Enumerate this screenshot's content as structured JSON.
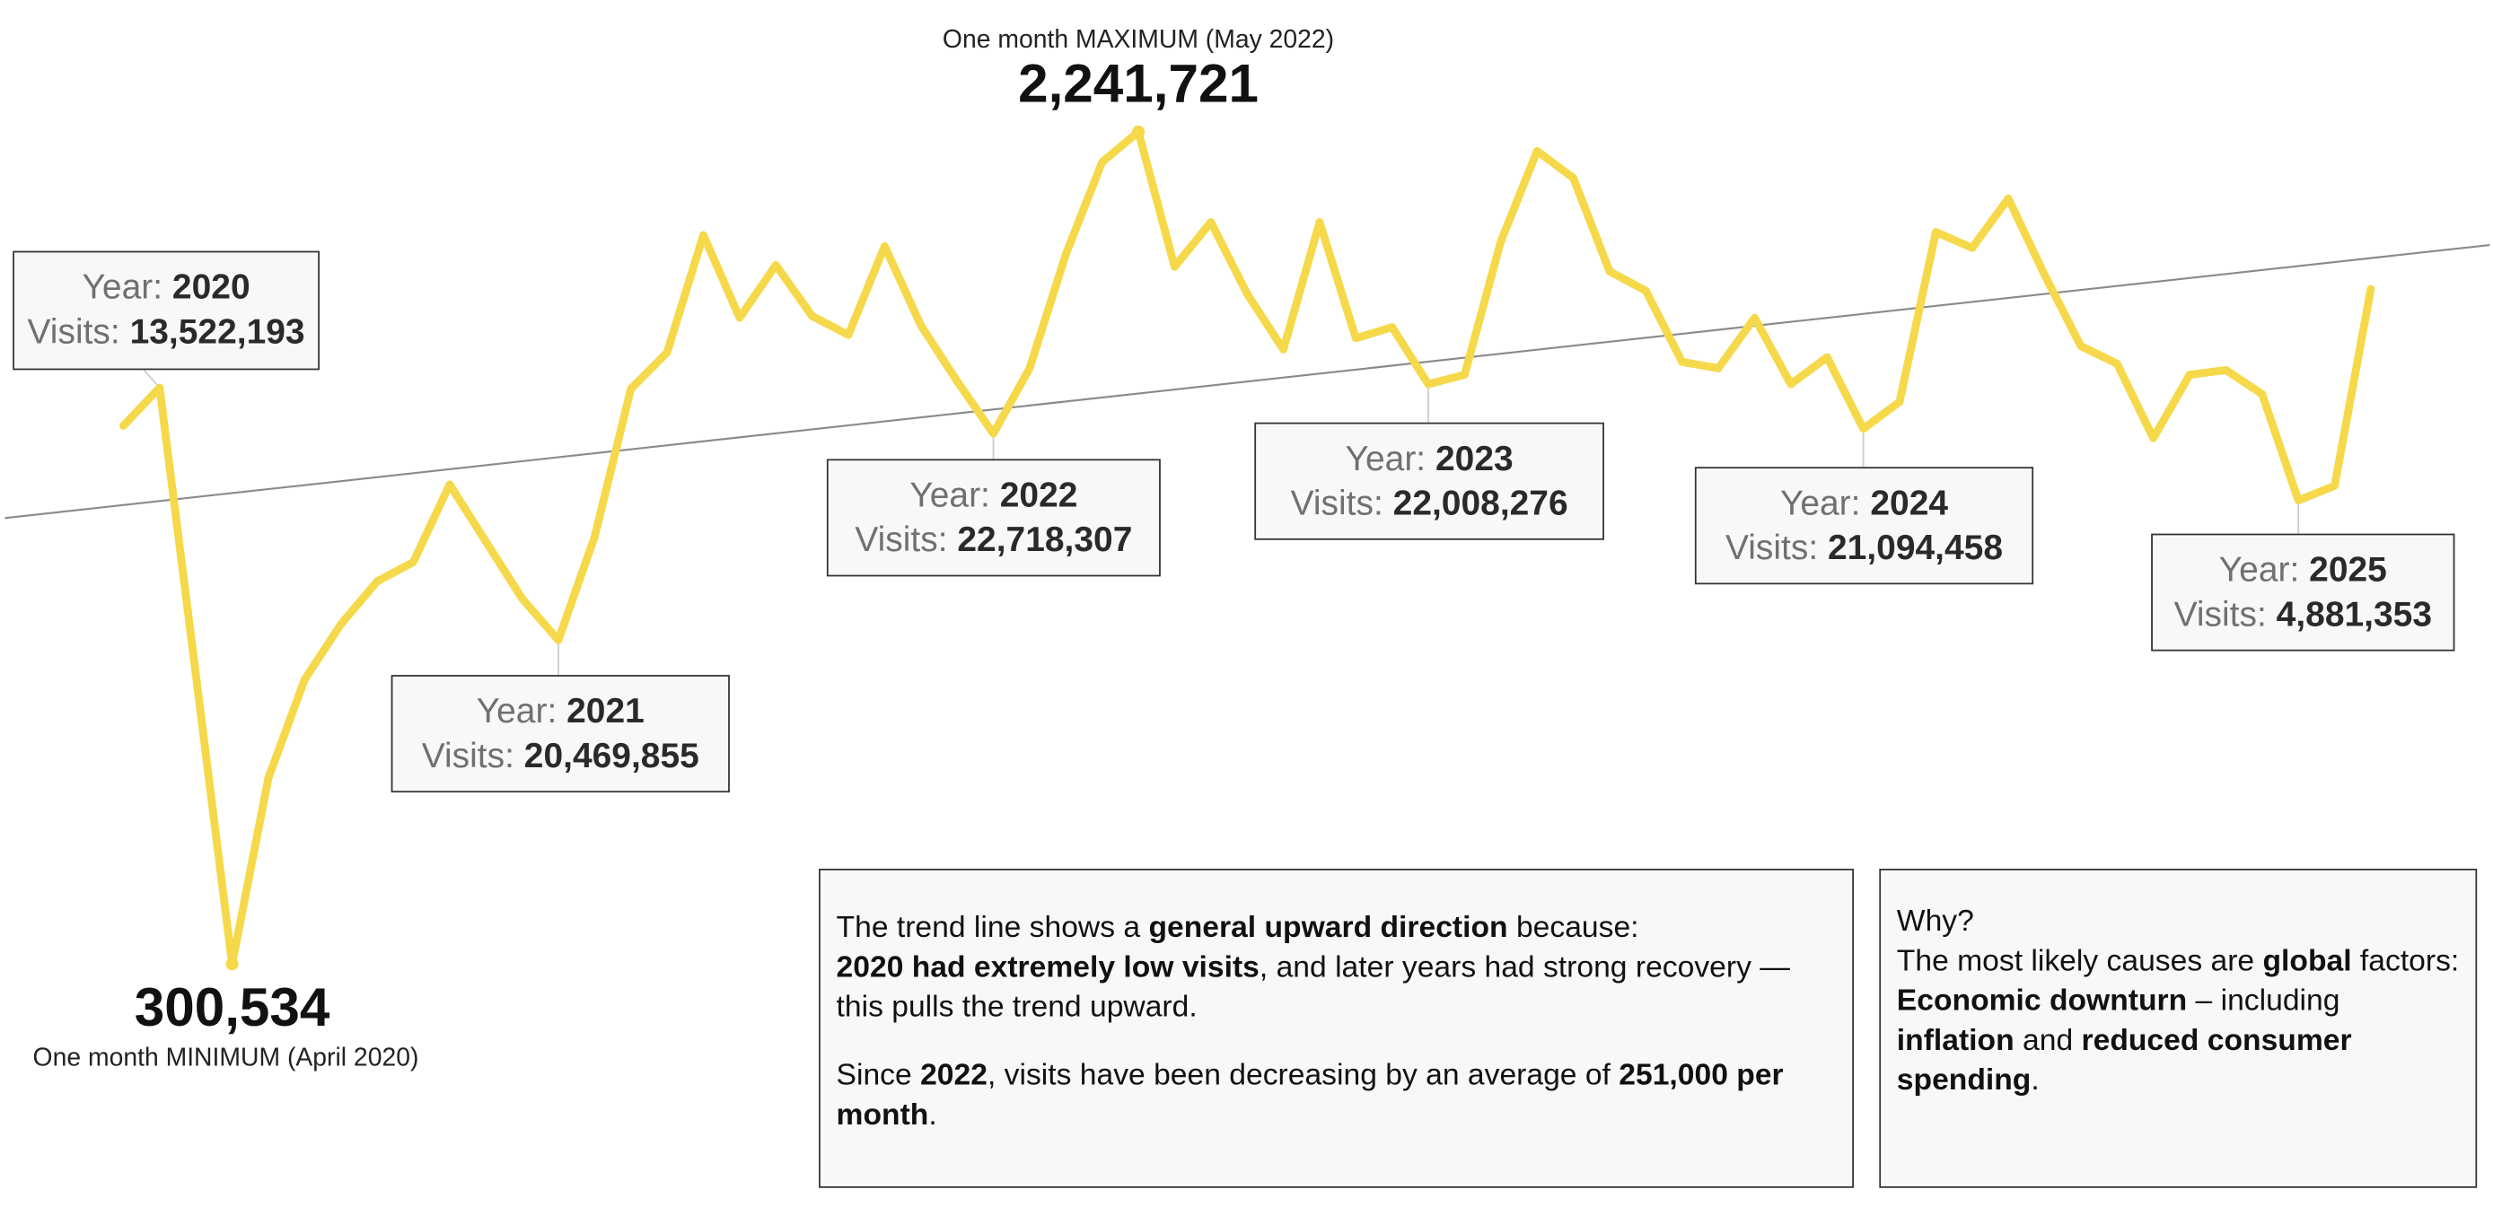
{
  "chart_data": {
    "type": "line",
    "color": "#f5d94a",
    "trendline": true,
    "trend_color": "#8a8a8a",
    "values": [
      1556000,
      1645000,
      975000,
      300534,
      734000,
      964000,
      1093000,
      1193000,
      1238000,
      1419000,
      1286000,
      1153000,
      1056000,
      1297000,
      1642000,
      1727000,
      2001000,
      1808000,
      1931000,
      1812000,
      1768000,
      1975000,
      1790000,
      1660000,
      1538000,
      1690000,
      1956000,
      2171000,
      2241721,
      1927000,
      2031000,
      1864000,
      1734000,
      2031000,
      1760000,
      1786000,
      1653000,
      1675000,
      1986000,
      2197000,
      2134000,
      1916000,
      1871000,
      1705000,
      1690000,
      1808000,
      1653000,
      1716000,
      1549000,
      1612000,
      2008000,
      1971000,
      2086000,
      1908000,
      1742000,
      1701000,
      1527000,
      1675000,
      1686000,
      1630000,
      1382000,
      1416000,
      1875000
    ],
    "value_labels": [
      null,
      null,
      null,
      "300,534",
      null,
      null,
      null,
      null,
      null,
      null,
      null,
      null,
      null,
      null,
      null,
      null,
      null,
      null,
      null,
      null,
      null,
      null,
      null,
      null,
      null,
      null,
      null,
      null,
      "2,241,721",
      null,
      null,
      null,
      null,
      null,
      null,
      null,
      null,
      null,
      null,
      null,
      null,
      null,
      null,
      null,
      null,
      null,
      null,
      null,
      null,
      null,
      null,
      null,
      null,
      null,
      null,
      null,
      null,
      null,
      null,
      null,
      null,
      null,
      null
    ],
    "min_caption": "One month MINIMUM (April 2020)",
    "max_caption": "One month MAXIMUM (May 2022)",
    "year_prefix": "Year:",
    "visits_prefix": "Visits:",
    "year_summaries": [
      {
        "year": 2020,
        "visits": "13,522,193"
      },
      {
        "year": 2021,
        "visits": "20,469,855"
      },
      {
        "year": 2022,
        "visits": "22,718,307"
      },
      {
        "year": 2023,
        "visits": "22,008,276"
      },
      {
        "year": 2024,
        "visits": "21,094,458"
      },
      {
        "year": 2025,
        "visits": "4,881,353"
      }
    ]
  },
  "notes": [
    {
      "paragraphs": [
        [
          {
            "text": "The trend line shows a "
          },
          {
            "text": "general upward direction",
            "bold": true
          },
          {
            "text": " because:"
          }
        ],
        [
          {
            "text": "2020 had extremely low visits",
            "bold": true
          },
          {
            "text": ", and later years had strong recovery — this pulls the trend upward."
          }
        ],
        [
          {
            "text": "Since "
          },
          {
            "text": "2022",
            "bold": true
          },
          {
            "text": ", visits have been decreasing by an average of "
          },
          {
            "text": "251,000 per month",
            "bold": true
          },
          {
            "text": "."
          }
        ]
      ]
    },
    {
      "paragraphs": [
        [
          {
            "text": "Why?"
          }
        ],
        [
          {
            "text": "The most likely causes are "
          },
          {
            "text": "global",
            "bold": true
          },
          {
            "text": " factors:"
          }
        ],
        [
          {
            "text": "Economic downturn",
            "bold": true
          },
          {
            "text": " – including "
          },
          {
            "text": "inflation",
            "bold": true
          },
          {
            "text": " and "
          },
          {
            "text": "reduced consumer spending",
            "bold": true
          },
          {
            "text": "."
          }
        ]
      ]
    }
  ]
}
